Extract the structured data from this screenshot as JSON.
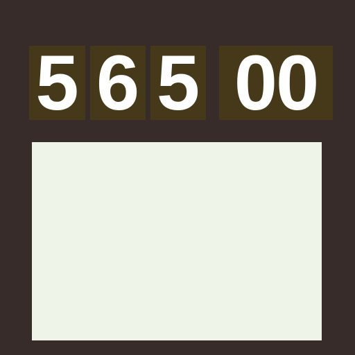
{
  "score": {
    "digits": [
      "5",
      "6",
      "5",
      "00"
    ]
  },
  "colors": {
    "background": "#372c29",
    "digit_tile": "#45391a",
    "digit_text": "#ffffff",
    "panel": "#eef5e8"
  }
}
